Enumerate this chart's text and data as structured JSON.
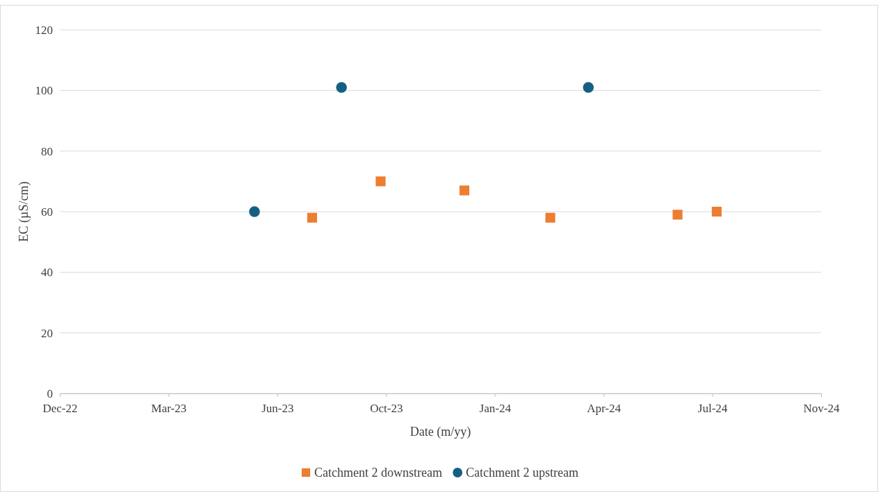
{
  "chart_data": {
    "type": "scatter",
    "xlabel": "Date (m/yy)",
    "ylabel": "EC (µS/cm)",
    "xlim": [
      "2022-12-05",
      "2024-11-04"
    ],
    "xticks": [
      {
        "value": "2022-12-05",
        "label": "Dec-22"
      },
      {
        "value": "2023-03-15",
        "label": "Mar-23"
      },
      {
        "value": "2023-06-23",
        "label": "Jun-23"
      },
      {
        "value": "2023-10-01",
        "label": "Oct-23"
      },
      {
        "value": "2024-01-09",
        "label": "Jan-24"
      },
      {
        "value": "2024-04-18",
        "label": "Apr-24"
      },
      {
        "value": "2024-07-27",
        "label": "Jul-24"
      },
      {
        "value": "2024-11-04",
        "label": "Nov-24"
      }
    ],
    "ylim": [
      0,
      120
    ],
    "yticks": [
      0,
      20,
      40,
      60,
      80,
      100,
      120
    ],
    "grid": "y",
    "legend": "bottom",
    "series": [
      {
        "name": "Catchment 2 downstream",
        "color": "#ed7d31",
        "marker": "square",
        "x": [
          "2023-07-25",
          "2023-09-26",
          "2023-12-12",
          "2024-02-29",
          "2024-06-25",
          "2024-07-31"
        ],
        "values": [
          58,
          70,
          67,
          58,
          59,
          60
        ]
      },
      {
        "name": "Catchment 2 upstream",
        "color": "#156082",
        "marker": "circle",
        "x": [
          "2023-06-02",
          "2023-08-21",
          "2024-04-04"
        ],
        "values": [
          60,
          101,
          101
        ]
      }
    ]
  }
}
